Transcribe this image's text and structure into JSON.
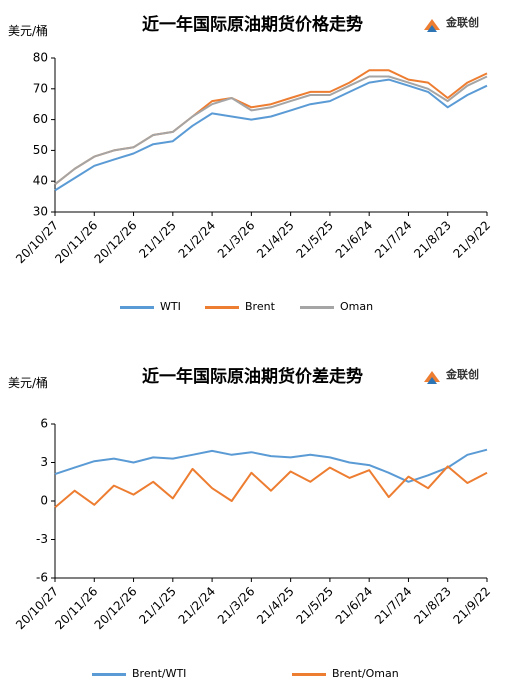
{
  "chart_data": [
    {
      "type": "line",
      "title": "近一年国际原油期货价格走势",
      "unit_label": "美元/桶",
      "brand": "金联创",
      "ylim": [
        30,
        80
      ],
      "yticks": [
        30,
        40,
        50,
        60,
        70,
        80
      ],
      "xticks": [
        "20/10/27",
        "20/11/26",
        "20/12/26",
        "21/1/25",
        "21/2/24",
        "21/3/26",
        "21/4/25",
        "21/5/25",
        "21/6/24",
        "21/7/24",
        "21/8/23",
        "21/9/22"
      ],
      "x": [
        "20/10/27",
        "20/11/11",
        "20/11/26",
        "20/12/11",
        "20/12/26",
        "21/1/10",
        "21/1/25",
        "21/2/9",
        "21/2/24",
        "21/3/11",
        "21/3/26",
        "21/4/10",
        "21/4/25",
        "21/5/10",
        "21/5/25",
        "21/6/9",
        "21/6/24",
        "21/7/9",
        "21/7/24",
        "21/8/8",
        "21/8/23",
        "21/9/7",
        "21/9/22"
      ],
      "series": [
        {
          "name": "WTI",
          "color": "#5b9bd5",
          "values": [
            37,
            41,
            45,
            47,
            49,
            52,
            53,
            58,
            62,
            61,
            60,
            61,
            63,
            65,
            66,
            69,
            72,
            73,
            71,
            69,
            64,
            68,
            71
          ]
        },
        {
          "name": "Brent",
          "color": "#ed7d31",
          "values": [
            39,
            44,
            48,
            50,
            51,
            55,
            56,
            61,
            66,
            67,
            64,
            65,
            67,
            69,
            69,
            72,
            76,
            76,
            73,
            72,
            67,
            72,
            75
          ]
        },
        {
          "name": "Oman",
          "color": "#a5a5a5",
          "values": [
            39,
            44,
            48,
            50,
            51,
            55,
            56,
            61,
            65,
            67,
            63,
            64,
            66,
            68,
            68,
            71,
            74,
            74,
            72,
            70,
            66,
            71,
            74
          ]
        }
      ],
      "legend_position": "bottom"
    },
    {
      "type": "line",
      "title": "近一年国际原油期货价差走势",
      "unit_label": "美元/桶",
      "brand": "金联创",
      "ylim": [
        -6,
        6
      ],
      "yticks": [
        -6,
        -3,
        0,
        3,
        6
      ],
      "xticks": [
        "20/10/27",
        "20/11/26",
        "20/12/26",
        "21/1/25",
        "21/2/24",
        "21/3/26",
        "21/4/25",
        "21/5/25",
        "21/6/24",
        "21/7/24",
        "21/8/23",
        "21/9/22"
      ],
      "x": [
        "20/10/27",
        "20/11/11",
        "20/11/26",
        "20/12/11",
        "20/12/26",
        "21/1/10",
        "21/1/25",
        "21/2/9",
        "21/2/24",
        "21/3/11",
        "21/3/26",
        "21/4/10",
        "21/4/25",
        "21/5/10",
        "21/5/25",
        "21/6/9",
        "21/6/24",
        "21/7/9",
        "21/7/24",
        "21/8/8",
        "21/8/23",
        "21/9/7",
        "21/9/22"
      ],
      "series": [
        {
          "name": "Brent/WTI",
          "color": "#5b9bd5",
          "values": [
            2.1,
            2.6,
            3.1,
            3.3,
            3.0,
            3.4,
            3.3,
            3.6,
            3.9,
            3.6,
            3.8,
            3.5,
            3.4,
            3.6,
            3.4,
            3.0,
            2.8,
            2.2,
            1.5,
            2.0,
            2.6,
            3.6,
            4.0
          ]
        },
        {
          "name": "Brent/Oman",
          "color": "#ed7d31",
          "values": [
            -0.5,
            0.8,
            -0.3,
            1.2,
            0.5,
            1.5,
            0.2,
            2.5,
            1.0,
            0.0,
            2.2,
            0.8,
            2.3,
            1.5,
            2.6,
            1.8,
            2.4,
            0.3,
            1.9,
            1.0,
            2.7,
            1.4,
            2.2
          ]
        }
      ],
      "legend_position": "bottom"
    }
  ]
}
